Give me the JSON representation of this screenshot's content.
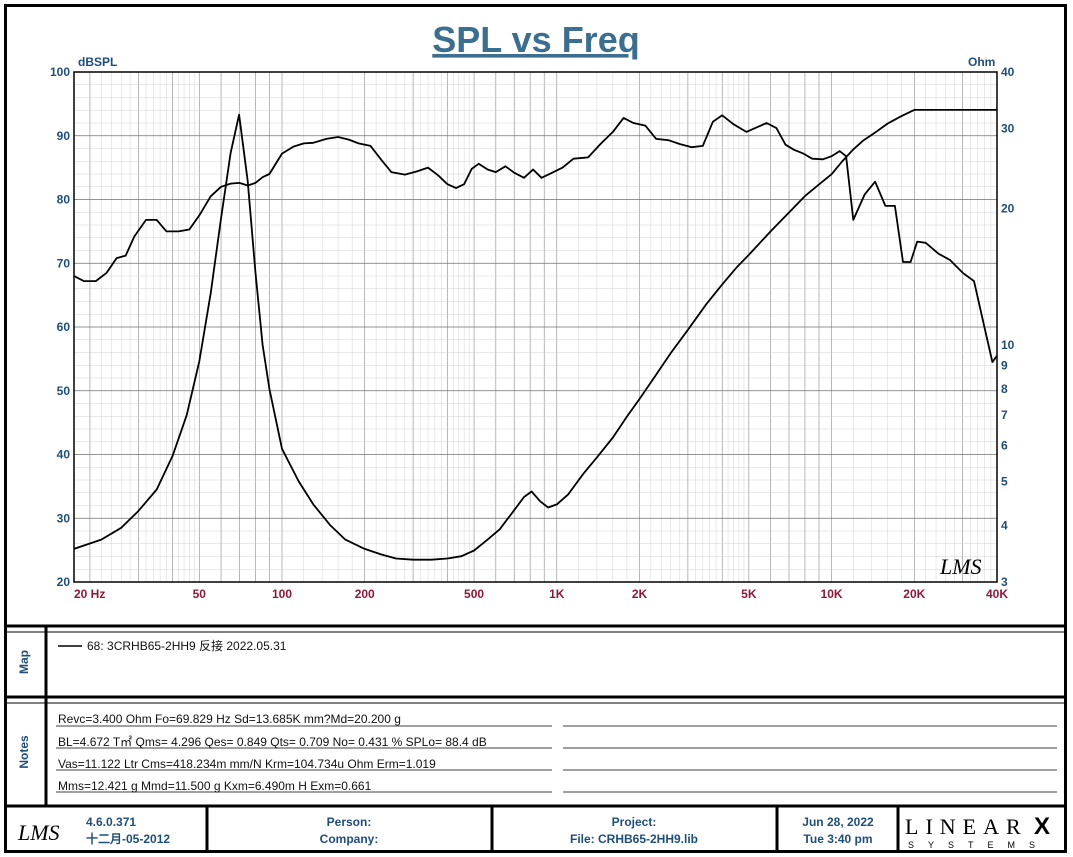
{
  "chart_data": {
    "type": "line",
    "title": "SPL vs Freq",
    "y_left_label": "dBSPL",
    "y_right_label": "Ohm",
    "x_scale": "log",
    "xlim": [
      17.5,
      40000
    ],
    "ylim_left": [
      20,
      100
    ],
    "ylim_right_log": [
      3,
      40
    ],
    "grid": true,
    "x_tick_labels": [
      {
        "value": 20,
        "label": "20  Hz"
      },
      {
        "value": 50,
        "label": "50"
      },
      {
        "value": 100,
        "label": "100"
      },
      {
        "value": 200,
        "label": "200"
      },
      {
        "value": 500,
        "label": "500"
      },
      {
        "value": 1000,
        "label": "1K"
      },
      {
        "value": 2000,
        "label": "2K"
      },
      {
        "value": 5000,
        "label": "5K"
      },
      {
        "value": 10000,
        "label": "10K"
      },
      {
        "value": 20000,
        "label": "20K"
      },
      {
        "value": 40000,
        "label": "40K"
      }
    ],
    "y_left_ticks": [
      20,
      30,
      40,
      50,
      60,
      70,
      80,
      90,
      100
    ],
    "y_right_ticks": [
      3,
      4,
      5,
      6,
      7,
      8,
      9,
      10,
      20,
      30,
      40
    ],
    "series": [
      {
        "axis": "left",
        "points": [
          [
            17.5,
            68
          ],
          [
            19,
            67.2
          ],
          [
            21,
            67.2
          ],
          [
            23,
            68.5
          ],
          [
            25,
            70.8
          ],
          [
            27,
            71.2
          ],
          [
            29,
            74.2
          ],
          [
            32,
            76.8
          ],
          [
            35,
            76.8
          ],
          [
            38,
            75.0
          ],
          [
            42,
            75.0
          ],
          [
            46,
            75.3
          ],
          [
            50,
            77.5
          ],
          [
            55,
            80.5
          ],
          [
            60,
            82.0
          ],
          [
            65,
            82.5
          ],
          [
            70,
            82.6
          ],
          [
            75,
            82.2
          ],
          [
            80,
            82.6
          ],
          [
            85,
            83.5
          ],
          [
            90,
            84.0
          ],
          [
            100,
            87.2
          ],
          [
            110,
            88.3
          ],
          [
            120,
            88.8
          ],
          [
            130,
            88.9
          ],
          [
            145,
            89.5
          ],
          [
            160,
            89.8
          ],
          [
            175,
            89.4
          ],
          [
            190,
            88.8
          ],
          [
            210,
            88.4
          ],
          [
            230,
            86.2
          ],
          [
            250,
            84.3
          ],
          [
            280,
            83.9
          ],
          [
            310,
            84.4
          ],
          [
            340,
            85.0
          ],
          [
            370,
            83.8
          ],
          [
            400,
            82.4
          ],
          [
            430,
            81.8
          ],
          [
            460,
            82.4
          ],
          [
            490,
            84.8
          ],
          [
            520,
            85.6
          ],
          [
            560,
            84.7
          ],
          [
            600,
            84.3
          ],
          [
            650,
            85.2
          ],
          [
            700,
            84.2
          ],
          [
            760,
            83.4
          ],
          [
            820,
            84.7
          ],
          [
            880,
            83.4
          ],
          [
            950,
            84.1
          ],
          [
            1050,
            85.0
          ],
          [
            1150,
            86.4
          ],
          [
            1300,
            86.6
          ],
          [
            1450,
            88.8
          ],
          [
            1600,
            90.6
          ],
          [
            1750,
            92.8
          ],
          [
            1900,
            92.0
          ],
          [
            2100,
            91.6
          ],
          [
            2300,
            89.5
          ],
          [
            2550,
            89.3
          ],
          [
            2800,
            88.7
          ],
          [
            3100,
            88.2
          ],
          [
            3400,
            88.4
          ],
          [
            3700,
            92.2
          ],
          [
            4000,
            93.2
          ],
          [
            4400,
            91.8
          ],
          [
            4900,
            90.6
          ],
          [
            5400,
            91.4
          ],
          [
            5800,
            92.0
          ],
          [
            6300,
            91.2
          ],
          [
            6800,
            88.6
          ],
          [
            7300,
            87.8
          ],
          [
            7900,
            87.2
          ],
          [
            8500,
            86.4
          ],
          [
            9300,
            86.3
          ],
          [
            10000,
            86.8
          ],
          [
            10700,
            87.6
          ],
          [
            11300,
            86.8
          ],
          [
            12000,
            76.8
          ],
          [
            13200,
            80.8
          ],
          [
            14400,
            82.8
          ],
          [
            15700,
            79.0
          ],
          [
            17000,
            79.0
          ],
          [
            18200,
            70.2
          ],
          [
            19400,
            70.2
          ],
          [
            20500,
            73.4
          ],
          [
            22000,
            73.2
          ],
          [
            24500,
            71.5
          ],
          [
            27000,
            70.5
          ],
          [
            30000,
            68.5
          ],
          [
            33000,
            67.2
          ],
          [
            36000,
            60.0
          ],
          [
            38500,
            54.5
          ],
          [
            40000,
            55.5
          ]
        ]
      },
      {
        "axis": "right",
        "points": [
          [
            17.5,
            3.55
          ],
          [
            22,
            3.72
          ],
          [
            26,
            3.95
          ],
          [
            30,
            4.3
          ],
          [
            35,
            4.8
          ],
          [
            40,
            5.7
          ],
          [
            45,
            7.0
          ],
          [
            50,
            9.2
          ],
          [
            55,
            13.0
          ],
          [
            60,
            19.0
          ],
          [
            65,
            26.5
          ],
          [
            69.8,
            32.2
          ],
          [
            75,
            23.0
          ],
          [
            80,
            14.5
          ],
          [
            85,
            10.0
          ],
          [
            90,
            8.0
          ],
          [
            100,
            5.9
          ],
          [
            115,
            5.0
          ],
          [
            130,
            4.45
          ],
          [
            150,
            4.0
          ],
          [
            170,
            3.72
          ],
          [
            200,
            3.55
          ],
          [
            230,
            3.45
          ],
          [
            260,
            3.38
          ],
          [
            300,
            3.36
          ],
          [
            350,
            3.36
          ],
          [
            400,
            3.38
          ],
          [
            450,
            3.42
          ],
          [
            500,
            3.52
          ],
          [
            560,
            3.72
          ],
          [
            620,
            3.92
          ],
          [
            700,
            4.32
          ],
          [
            760,
            4.62
          ],
          [
            810,
            4.75
          ],
          [
            870,
            4.52
          ],
          [
            930,
            4.38
          ],
          [
            1000,
            4.45
          ],
          [
            1100,
            4.68
          ],
          [
            1250,
            5.2
          ],
          [
            1400,
            5.65
          ],
          [
            1600,
            6.25
          ],
          [
            1800,
            6.95
          ],
          [
            2000,
            7.6
          ],
          [
            2300,
            8.6
          ],
          [
            2600,
            9.6
          ],
          [
            3000,
            10.8
          ],
          [
            3500,
            12.3
          ],
          [
            4000,
            13.6
          ],
          [
            4500,
            14.8
          ],
          [
            5000,
            15.8
          ],
          [
            6000,
            17.8
          ],
          [
            7000,
            19.6
          ],
          [
            8000,
            21.3
          ],
          [
            9000,
            22.6
          ],
          [
            10000,
            23.8
          ],
          [
            11000,
            25.5
          ],
          [
            12000,
            27.0
          ],
          [
            13000,
            28.2
          ],
          [
            14500,
            29.5
          ],
          [
            16000,
            30.8
          ],
          [
            18000,
            32.0
          ],
          [
            20000,
            33.0
          ],
          [
            40000,
            33.0
          ]
        ]
      }
    ]
  },
  "legend": {
    "entry": "68: 3CRHB65-2HH9 反接 2022.05.31"
  },
  "panels": {
    "map_label": "Map",
    "notes_label": "Notes"
  },
  "notes": [
    "Revc=3.400 Ohm  Fo=69.829 Hz  Sd=13.685K mm?Md=20.200 g",
    "BL=4.672 T㎡  Qms= 4.296  Qes= 0.849  Qts= 0.709  No= 0.431 %  SPLo= 88.4 dB",
    "Vas=11.122 Ltr  Cms=418.234m mm/N  Krm=104.734u Ohm  Erm=1.019",
    "Mms=12.421 g  Mmd=11.500 g  Kxm=6.490m H  Exm=0.661"
  ],
  "footer": {
    "logo": "LMS",
    "version": "4.6.0.371",
    "build_date": "十二月-05-2012",
    "person": "Person:",
    "company": "Company:",
    "project": "Project:",
    "file": "File: CRHB65-2HH9.lib",
    "date": "Jun 28, 2022",
    "time": "Tue  3:40 pm",
    "brand": "LINEAR",
    "brand_x": "X",
    "brand_sub": "SYSTEMS"
  },
  "watermark": "LMS",
  "colors": {
    "frame": "#000000",
    "grid": "#8a8a8a",
    "title": "#3b6e8f",
    "y_ticks": "#1f4e79",
    "x_ticks": "#8b1a3a",
    "series": "#000000"
  }
}
